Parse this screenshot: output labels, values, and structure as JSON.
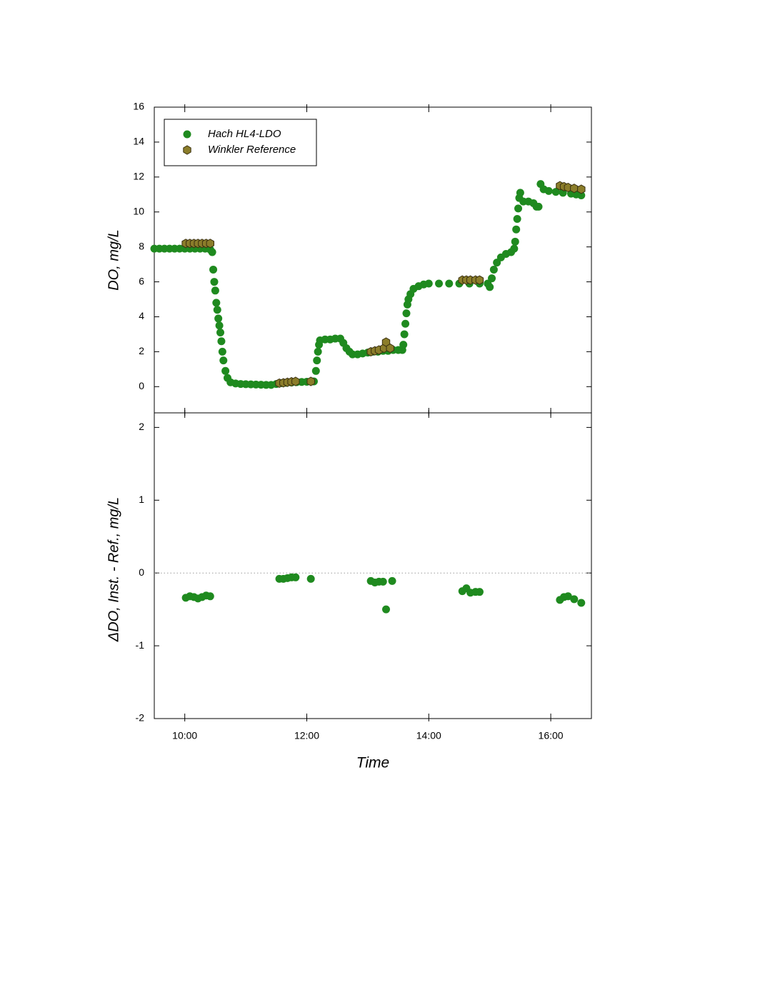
{
  "chart_data": [
    {
      "type": "scatter",
      "ylabel": "DO, mg/L",
      "xlim": [
        570,
        1000
      ],
      "ylim": [
        -1.5,
        16
      ],
      "yticks": [
        0,
        2,
        4,
        6,
        8,
        10,
        12,
        14,
        16
      ],
      "legend": "upper left",
      "series": [
        {
          "name": "Hach HL4-LDO",
          "color": "#1f8a1f",
          "marker": "circle",
          "x": [
            570,
            575,
            580,
            585,
            590,
            595,
            600,
            605,
            610,
            615,
            620,
            625,
            627,
            628,
            629,
            630,
            631,
            632,
            633,
            634,
            635,
            636,
            637,
            638,
            640,
            642,
            645,
            650,
            655,
            660,
            665,
            670,
            675,
            680,
            685,
            690,
            695,
            700,
            705,
            710,
            715,
            720,
            725,
            727,
            729,
            730,
            731,
            732,
            733,
            738,
            743,
            748,
            753,
            756,
            759,
            762,
            765,
            770,
            775,
            780,
            785,
            790,
            795,
            800,
            805,
            810,
            814,
            815,
            816,
            817,
            818,
            819,
            820,
            822,
            825,
            830,
            835,
            840,
            850,
            860,
            870,
            880,
            890,
            898,
            900,
            902,
            904,
            907,
            911,
            916,
            921,
            924,
            925,
            926,
            927,
            928,
            929,
            930,
            933,
            938,
            943,
            946,
            948,
            950,
            953,
            958,
            965,
            972,
            980,
            985,
            990
          ],
          "values": [
            7.9,
            7.9,
            7.9,
            7.9,
            7.9,
            7.9,
            7.9,
            7.9,
            7.9,
            7.9,
            7.9,
            7.85,
            7.7,
            6.7,
            6.0,
            5.5,
            4.8,
            4.4,
            3.9,
            3.5,
            3.1,
            2.6,
            2.0,
            1.5,
            0.9,
            0.5,
            0.25,
            0.18,
            0.15,
            0.14,
            0.13,
            0.12,
            0.11,
            0.1,
            0.1,
            0.15,
            0.2,
            0.22,
            0.24,
            0.26,
            0.27,
            0.28,
            0.3,
            0.3,
            0.9,
            1.5,
            2.0,
            2.4,
            2.65,
            2.7,
            2.7,
            2.75,
            2.75,
            2.5,
            2.2,
            2.0,
            1.85,
            1.85,
            1.9,
            1.95,
            2.0,
            2.0,
            2.05,
            2.05,
            2.1,
            2.1,
            2.1,
            2.4,
            3.0,
            3.6,
            4.2,
            4.7,
            5.0,
            5.3,
            5.6,
            5.75,
            5.85,
            5.9,
            5.9,
            5.9,
            5.9,
            5.9,
            5.9,
            5.9,
            5.7,
            6.2,
            6.7,
            7.1,
            7.4,
            7.6,
            7.7,
            7.9,
            8.3,
            9.0,
            9.6,
            10.2,
            10.8,
            11.1,
            10.6,
            10.6,
            10.5,
            10.3,
            10.3,
            11.6,
            11.3,
            11.2,
            11.15,
            11.1,
            11.05,
            11.0,
            10.95
          ]
        },
        {
          "name": "Winkler Reference",
          "color": "#8b7d2a",
          "marker": "hexagon",
          "x": [
            601,
            605,
            609,
            613,
            617,
            621,
            625,
            693,
            697,
            701,
            705,
            709,
            724,
            783,
            787,
            791,
            796,
            798,
            802,
            873,
            877,
            881,
            886,
            890,
            969,
            973,
            977,
            983,
            990
          ],
          "values": [
            8.2,
            8.2,
            8.2,
            8.2,
            8.2,
            8.2,
            8.2,
            0.2,
            0.22,
            0.25,
            0.28,
            0.3,
            0.3,
            2.0,
            2.05,
            2.1,
            2.2,
            2.55,
            2.2,
            6.1,
            6.1,
            6.1,
            6.1,
            6.1,
            11.5,
            11.45,
            11.4,
            11.35,
            11.3
          ]
        }
      ]
    },
    {
      "type": "scatter",
      "xlabel": "Time",
      "ylabel": "ΔDO, Inst. - Ref., mg/L",
      "xlim": [
        570,
        1000
      ],
      "ylim": [
        -2,
        2.2
      ],
      "xticks": [
        {
          "value": 600,
          "label": "10:00"
        },
        {
          "value": 720,
          "label": "12:00"
        },
        {
          "value": 840,
          "label": "14:00"
        },
        {
          "value": 960,
          "label": "16:00"
        }
      ],
      "yticks": [
        -2,
        -1,
        0,
        1,
        2
      ],
      "zero_line": true,
      "series": [
        {
          "color": "#1f8a1f",
          "marker": "circle",
          "x": [
            601,
            605,
            609,
            613,
            617,
            621,
            625,
            693,
            697,
            701,
            705,
            709,
            724,
            783,
            787,
            791,
            795,
            798,
            804,
            873,
            877,
            881,
            886,
            890,
            969,
            973,
            977,
            983,
            990
          ],
          "values": [
            -0.34,
            -0.32,
            -0.33,
            -0.35,
            -0.33,
            -0.31,
            -0.32,
            -0.08,
            -0.08,
            -0.07,
            -0.06,
            -0.06,
            -0.08,
            -0.11,
            -0.13,
            -0.12,
            -0.12,
            -0.5,
            -0.11,
            -0.25,
            -0.21,
            -0.27,
            -0.26,
            -0.26,
            -0.37,
            -0.33,
            -0.32,
            -0.36,
            -0.41
          ]
        }
      ]
    }
  ]
}
